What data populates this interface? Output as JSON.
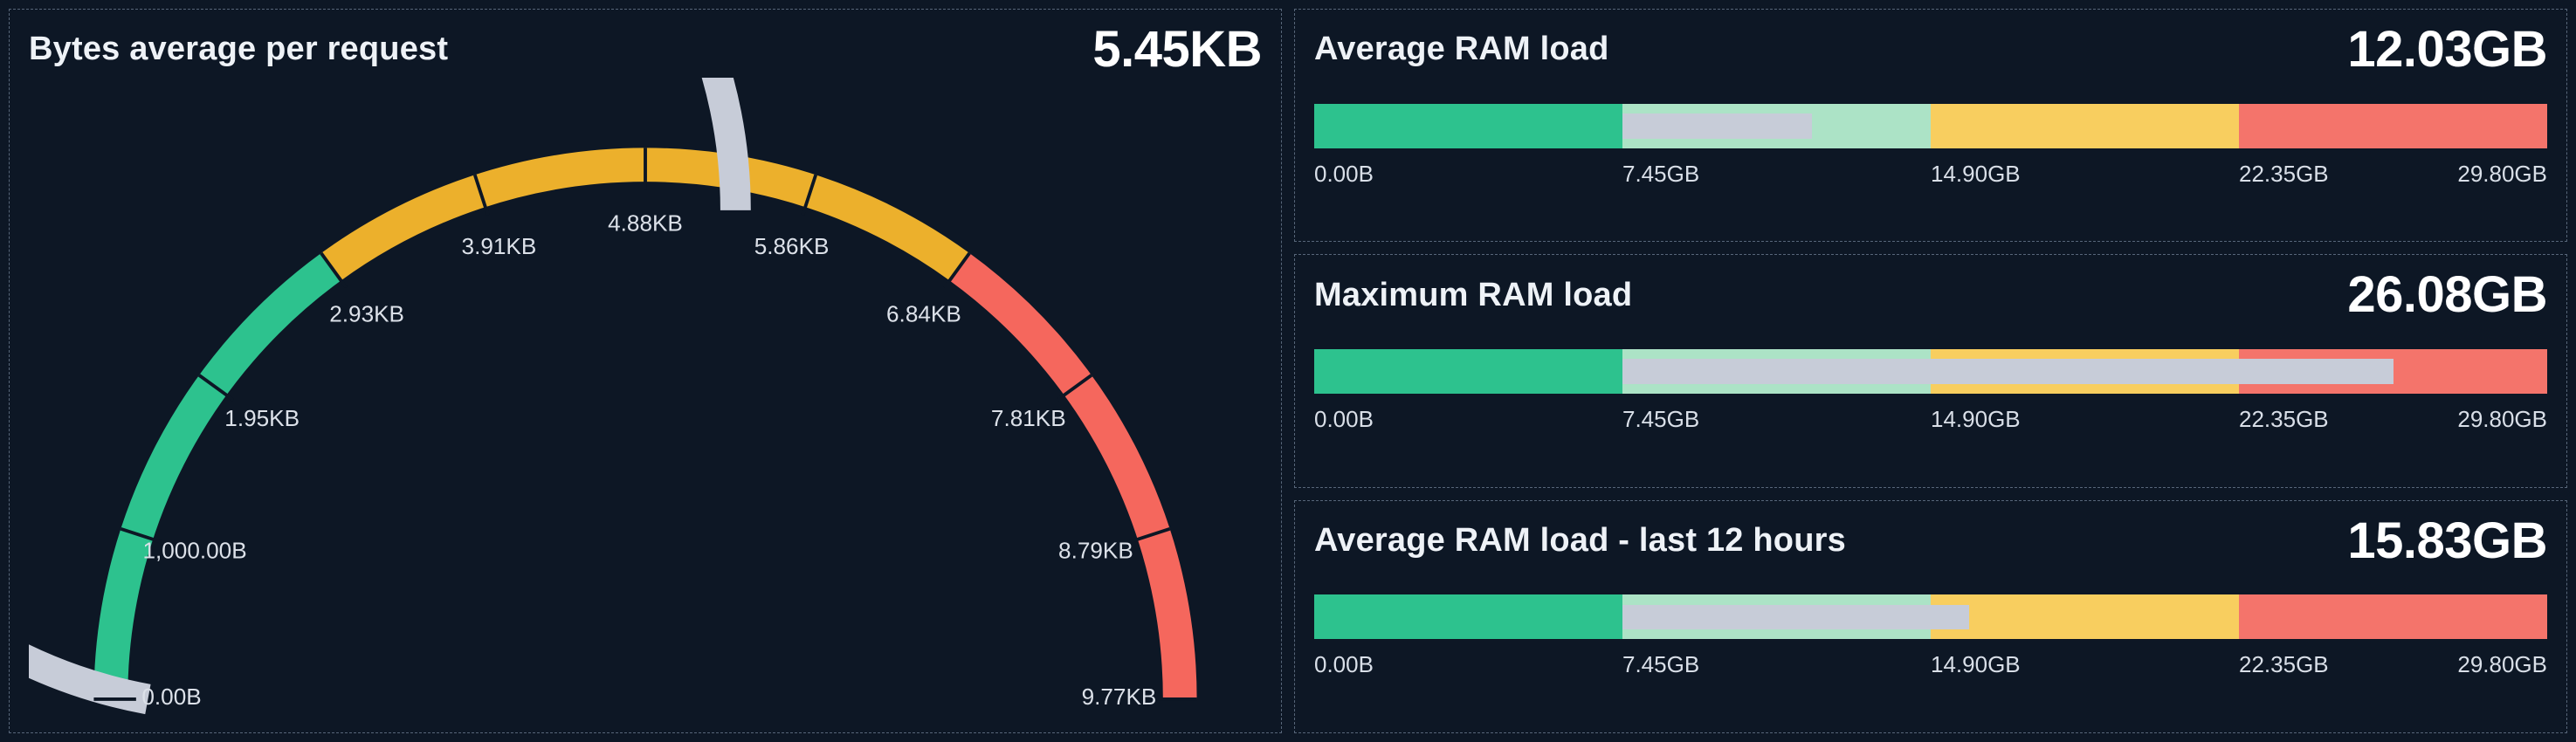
{
  "page": {
    "background": "#0d1725",
    "panel_border": "rgba(160,180,205,0.5)"
  },
  "panels": {
    "gauge": {
      "title": "Bytes average per request",
      "value": "5.45KB"
    },
    "bars": [
      {
        "title": "Average RAM load",
        "value": "12.03GB"
      },
      {
        "title": "Maximum RAM load",
        "value": "26.08GB"
      },
      {
        "title": "Average RAM load - last 12 hours",
        "value": "15.83GB"
      }
    ]
  },
  "chart_data": [
    {
      "id": "bytes-average-gauge",
      "type": "gauge",
      "title": "Bytes average per request",
      "unit": "bytes",
      "min": 0,
      "max": 10000,
      "value": 5581,
      "value_label": "5.45KB",
      "value_color": "#C7CCD8",
      "segments": [
        {
          "from": 0,
          "to": 3000,
          "color": "#2DC28E",
          "name": "green"
        },
        {
          "from": 3000,
          "to": 7000,
          "color": "#ECB02C",
          "name": "yellow"
        },
        {
          "from": 7000,
          "to": 10000,
          "color": "#F5675D",
          "name": "red"
        }
      ],
      "ticks": [
        {
          "value": 0,
          "label": "0.00B"
        },
        {
          "value": 1000,
          "label": "1,000.00B"
        },
        {
          "value": 2000,
          "label": "1.95KB"
        },
        {
          "value": 3000,
          "label": "2.93KB"
        },
        {
          "value": 4000,
          "label": "3.91KB"
        },
        {
          "value": 5000,
          "label": "4.88KB"
        },
        {
          "value": 6000,
          "label": "5.86KB"
        },
        {
          "value": 7000,
          "label": "6.84KB"
        },
        {
          "value": 8000,
          "label": "7.81KB"
        },
        {
          "value": 9000,
          "label": "8.79KB"
        },
        {
          "value": 10000,
          "label": "9.77KB"
        }
      ]
    },
    {
      "id": "average-ram-load",
      "type": "bar-gauge",
      "title": "Average RAM load",
      "unit": "GB",
      "min": 0,
      "max": 29.8,
      "value": 12.03,
      "value_label": "12.03GB",
      "value_color": "#C7CCD8",
      "segments": [
        {
          "from": 0,
          "to": 7.45,
          "color": "#2DC28E",
          "name": "green"
        },
        {
          "from": 7.45,
          "to": 14.9,
          "color": "#ACE3C6",
          "name": "pale-green"
        },
        {
          "from": 14.9,
          "to": 22.35,
          "color": "#F8CE5F",
          "name": "yellow"
        },
        {
          "from": 22.35,
          "to": 29.8,
          "color": "#F4746B",
          "name": "red"
        }
      ],
      "ticks": [
        {
          "value": 0,
          "label": "0.00B"
        },
        {
          "value": 7.45,
          "label": "7.45GB"
        },
        {
          "value": 14.9,
          "label": "14.90GB"
        },
        {
          "value": 22.35,
          "label": "22.35GB"
        },
        {
          "value": 29.8,
          "label": "29.80GB"
        }
      ]
    },
    {
      "id": "maximum-ram-load",
      "type": "bar-gauge",
      "title": "Maximum RAM load",
      "unit": "GB",
      "min": 0,
      "max": 29.8,
      "value": 26.08,
      "value_label": "26.08GB",
      "value_color": "#C7CCD8",
      "segments": [
        {
          "from": 0,
          "to": 7.45,
          "color": "#2DC28E",
          "name": "green"
        },
        {
          "from": 7.45,
          "to": 14.9,
          "color": "#ACE3C6",
          "name": "pale-green"
        },
        {
          "from": 14.9,
          "to": 22.35,
          "color": "#F8CE5F",
          "name": "yellow"
        },
        {
          "from": 22.35,
          "to": 29.8,
          "color": "#F4746B",
          "name": "red"
        }
      ],
      "ticks": [
        {
          "value": 0,
          "label": "0.00B"
        },
        {
          "value": 7.45,
          "label": "7.45GB"
        },
        {
          "value": 14.9,
          "label": "14.90GB"
        },
        {
          "value": 22.35,
          "label": "22.35GB"
        },
        {
          "value": 29.8,
          "label": "29.80GB"
        }
      ]
    },
    {
      "id": "average-ram-load-12h",
      "type": "bar-gauge",
      "title": "Average RAM load - last 12 hours",
      "unit": "GB",
      "min": 0,
      "max": 29.8,
      "value": 15.83,
      "value_label": "15.83GB",
      "value_color": "#C7CCD8",
      "segments": [
        {
          "from": 0,
          "to": 7.45,
          "color": "#2DC28E",
          "name": "green"
        },
        {
          "from": 7.45,
          "to": 14.9,
          "color": "#ACE3C6",
          "name": "pale-green"
        },
        {
          "from": 14.9,
          "to": 22.35,
          "color": "#F8CE5F",
          "name": "yellow"
        },
        {
          "from": 22.35,
          "to": 29.8,
          "color": "#F4746B",
          "name": "red"
        }
      ],
      "ticks": [
        {
          "value": 0,
          "label": "0.00B"
        },
        {
          "value": 7.45,
          "label": "7.45GB"
        },
        {
          "value": 14.9,
          "label": "14.90GB"
        },
        {
          "value": 22.35,
          "label": "22.35GB"
        },
        {
          "value": 29.8,
          "label": "29.80GB"
        }
      ]
    }
  ]
}
